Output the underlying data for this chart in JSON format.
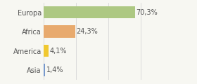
{
  "categories": [
    "Asia",
    "America",
    "Africa",
    "Europa"
  ],
  "values": [
    1.4,
    4.1,
    24.3,
    70.3
  ],
  "labels": [
    "1,4%",
    "4,1%",
    "24,3%",
    "70,3%"
  ],
  "bar_colors": [
    "#7799cc",
    "#f0c830",
    "#e8aa6e",
    "#adc882"
  ],
  "background_color": "#f7f7f2",
  "xlim": [
    0,
    100
  ],
  "bar_height": 0.65,
  "label_fontsize": 7.0,
  "tick_fontsize": 7.0
}
